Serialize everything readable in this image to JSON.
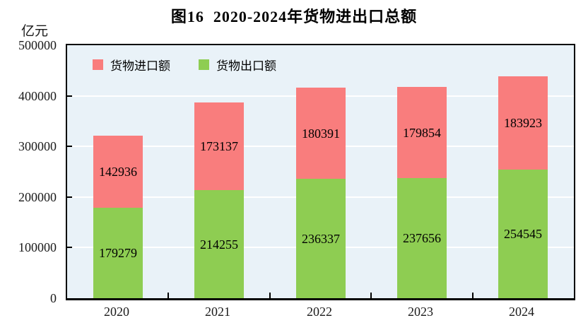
{
  "figure": {
    "title": "图16  2020-2024年货物进出口总额",
    "unit_label": "亿元"
  },
  "chart_data": {
    "type": "bar",
    "stacked": true,
    "title": "图16  2020-2024年货物进出口总额",
    "ylabel": "亿元",
    "categories": [
      "2020",
      "2021",
      "2022",
      "2023",
      "2024"
    ],
    "series": [
      {
        "name": "货物出口额",
        "color": "#8ecd52",
        "values": [
          179279,
          214255,
          236337,
          237656,
          254545
        ]
      },
      {
        "name": "货物进口额",
        "color": "#f97d7d",
        "values": [
          142936,
          173137,
          180391,
          179854,
          183923
        ]
      }
    ],
    "legend": [
      {
        "label": "货物进口额",
        "color": "#f97d7d"
      },
      {
        "label": "货物出口额",
        "color": "#8ecd52"
      }
    ],
    "legend_position": "top-left-inside",
    "ylim": [
      0,
      500000
    ],
    "yticks": [
      0,
      100000,
      200000,
      300000,
      400000,
      500000
    ],
    "grid": "horizontal",
    "colors": {
      "plot_background": "#e9f2f8",
      "gridline": "#ffffff",
      "axis": "#000000",
      "text": "#000000"
    }
  }
}
